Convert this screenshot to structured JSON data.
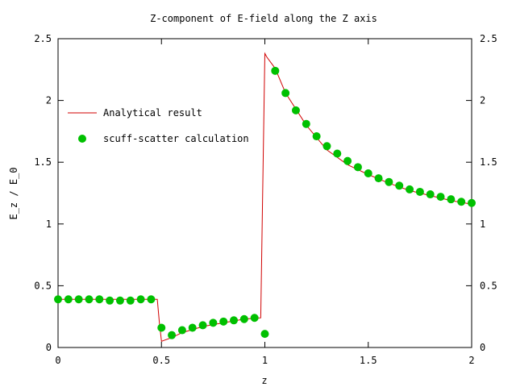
{
  "chart_data": {
    "type": "line",
    "title": "Z-component of E-field along the Z axis",
    "xlabel": "z",
    "ylabel": "E_z / E_0",
    "xlim": [
      0,
      2
    ],
    "ylim": [
      0,
      2.5
    ],
    "x_ticks": [
      "0",
      "0.5",
      "1",
      "1.5",
      "2"
    ],
    "y_ticks": [
      "0",
      "0.5",
      "1",
      "1.5",
      "2",
      "2.5"
    ],
    "y_ticks_right": true,
    "grid": false,
    "legend_position": "left",
    "series": [
      {
        "name": "Analytical result",
        "style": "line",
        "color": "#d00000",
        "x": [
          0,
          0.47,
          0.48,
          0.49,
          0.5,
          0.55,
          0.6,
          0.7,
          0.8,
          0.9,
          0.98,
          0.99,
          1.0,
          1.01,
          1.05,
          1.1,
          1.2,
          1.3,
          1.4,
          1.5,
          1.6,
          1.7,
          1.8,
          1.9,
          2.0
        ],
        "y": [
          0.39,
          0.39,
          0.39,
          0.2,
          0.05,
          0.08,
          0.12,
          0.17,
          0.2,
          0.23,
          0.24,
          1.3,
          2.38,
          2.35,
          2.26,
          2.06,
          1.8,
          1.6,
          1.48,
          1.4,
          1.33,
          1.27,
          1.23,
          1.19,
          1.16
        ]
      },
      {
        "name": "scuff-scatter calculation",
        "style": "points",
        "color": "#00c000",
        "x": [
          0,
          0.05,
          0.1,
          0.15,
          0.2,
          0.25,
          0.3,
          0.35,
          0.4,
          0.45,
          0.5,
          0.55,
          0.6,
          0.65,
          0.7,
          0.75,
          0.8,
          0.85,
          0.9,
          0.95,
          1.0,
          1.05,
          1.1,
          1.15,
          1.2,
          1.25,
          1.3,
          1.35,
          1.4,
          1.45,
          1.5,
          1.55,
          1.6,
          1.65,
          1.7,
          1.75,
          1.8,
          1.85,
          1.9,
          1.95,
          2.0
        ],
        "y": [
          0.39,
          0.39,
          0.39,
          0.39,
          0.39,
          0.38,
          0.38,
          0.38,
          0.39,
          0.39,
          0.16,
          0.1,
          0.14,
          0.16,
          0.18,
          0.2,
          0.21,
          0.22,
          0.23,
          0.24,
          0.11,
          2.24,
          2.06,
          1.92,
          1.81,
          1.71,
          1.63,
          1.57,
          1.51,
          1.46,
          1.41,
          1.37,
          1.34,
          1.31,
          1.28,
          1.26,
          1.24,
          1.22,
          1.2,
          1.18,
          1.17
        ]
      }
    ]
  }
}
